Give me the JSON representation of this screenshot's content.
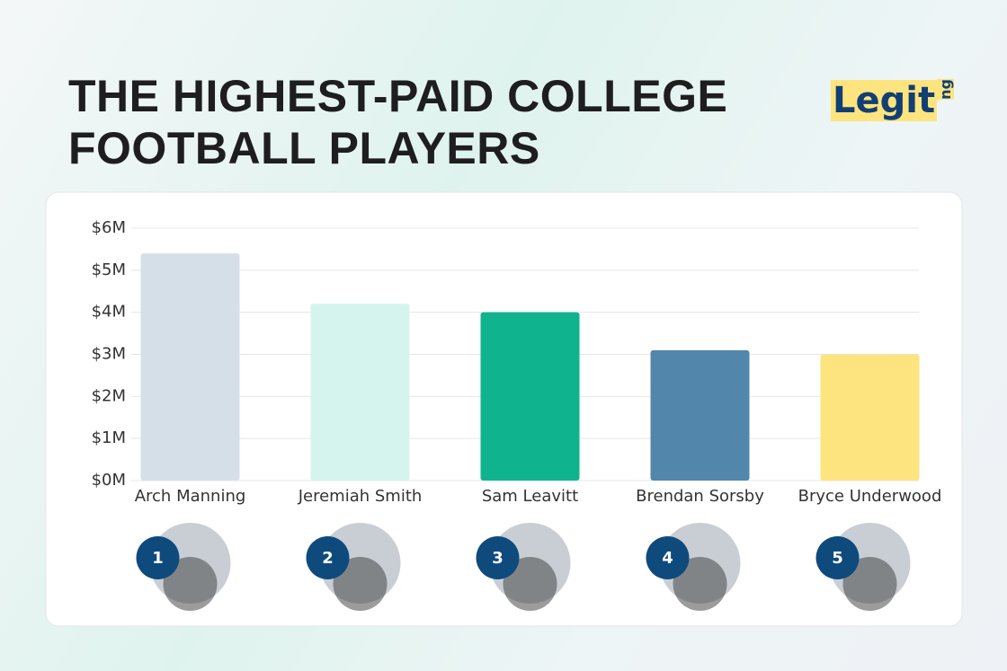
{
  "chart_data": {
    "type": "bar",
    "title": "THE HIGHEST-PAID COLLEGE\nFOOTBALL PLAYERS",
    "logo": {
      "text": "Legit",
      "suffix": "ng"
    },
    "categories": [
      "Arch Manning",
      "Jeremiah Smith",
      "Sam Leavitt",
      "Brendan Sorsby",
      "Bryce Underwood"
    ],
    "values": [
      5400000,
      4200000,
      4000000,
      3100000,
      3000000
    ],
    "colors": [
      "#d5dfe8",
      "#d6f4ee",
      "#0fb48f",
      "#5386ab",
      "#fde47f"
    ],
    "ranks": [
      1,
      2,
      3,
      4,
      5
    ],
    "ylim": [
      0,
      6000000
    ],
    "yticks": [
      {
        "value": 0,
        "label": "$0M"
      },
      {
        "value": 1000000,
        "label": "$1M"
      },
      {
        "value": 2000000,
        "label": "$2M"
      },
      {
        "value": 3000000,
        "label": "$3M"
      },
      {
        "value": 4000000,
        "label": "$4M"
      },
      {
        "value": 5000000,
        "label": "$5M"
      },
      {
        "value": 6000000,
        "label": "$6M"
      }
    ],
    "grid": true
  }
}
